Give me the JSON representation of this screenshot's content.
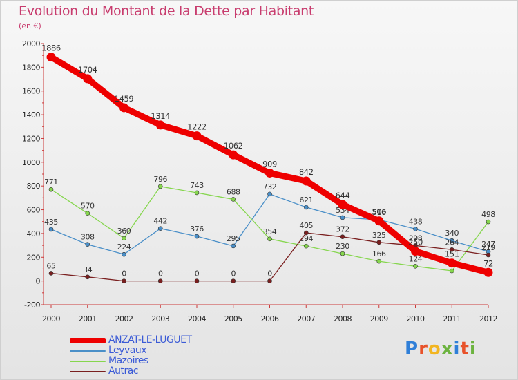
{
  "title": "Evolution du Montant de la Dette par Habitant",
  "subtitle": "(en €)",
  "logo": {
    "text": "Proxiti",
    "letter_colors": [
      "#2f7fd8",
      "#e8522a",
      "#f2b521",
      "#6cb33f",
      "#2f7fd8",
      "#e8522a",
      "#6cb33f"
    ]
  },
  "chart_data": {
    "type": "line",
    "title": "Evolution du Montant de la Dette par Habitant",
    "ylabel": "(en €)",
    "x": [
      2000,
      2001,
      2002,
      2003,
      2004,
      2005,
      2006,
      2007,
      2008,
      2009,
      2010,
      2011,
      2012
    ],
    "ylim": [
      -200,
      2000
    ],
    "yticks": [
      -200,
      0,
      200,
      400,
      600,
      800,
      1000,
      1200,
      1400,
      1600,
      1800,
      2000
    ],
    "grid": false,
    "legend_position": "bottom-left",
    "series": [
      {
        "name": "ANZAT-LE-LUGUET",
        "color": "#ee0000",
        "values": [
          1886,
          1704,
          1459,
          1314,
          1222,
          1062,
          909,
          842,
          644,
          506,
          250,
          151,
          72
        ]
      },
      {
        "name": "Leyvaux",
        "color": "#4a8fc8",
        "values": [
          435,
          308,
          224,
          442,
          376,
          295,
          732,
          621,
          534,
          516,
          438,
          340,
          247
        ]
      },
      {
        "name": "Mazoires",
        "color": "#86d64e",
        "values": [
          771,
          570,
          360,
          796,
          743,
          688,
          354,
          294,
          230,
          166,
          124,
          85,
          498
        ]
      },
      {
        "name": "Autrac",
        "color": "#7a1f1f",
        "values": [
          65,
          34,
          0,
          0,
          0,
          0,
          0,
          405,
          372,
          325,
          298,
          264,
          219
        ]
      }
    ]
  }
}
